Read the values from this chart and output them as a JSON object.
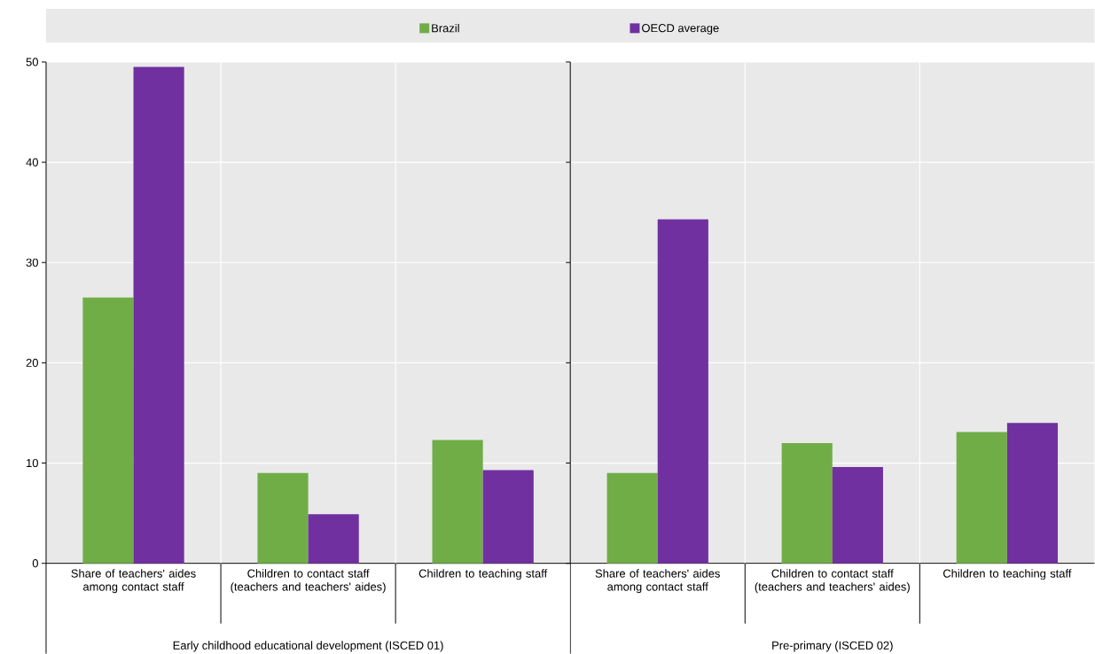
{
  "chart_data": [
    {
      "type": "bar",
      "categories": [
        "Share of teachers' aides among contact staff",
        "Children to contact staff (teachers and teachers' aides)",
        "Children to teaching staff"
      ],
      "series": [
        {
          "name": "Brazil",
          "color": "#70ad47",
          "values": [
            26.5,
            9.0,
            12.3
          ]
        },
        {
          "name": "OECD average",
          "color": "#7030a0",
          "values": [
            49.5,
            4.9,
            9.3
          ]
        }
      ],
      "ylim": [
        0,
        50
      ],
      "yticks": [
        0,
        10,
        20,
        30,
        40,
        50
      ],
      "grid": true,
      "legend": "top",
      "xlabel": "Early childhood educational development (ISCED 01)"
    },
    {
      "type": "bar",
      "categories": [
        "Share of teachers' aides among contact staff",
        "Children to contact staff (teachers and teachers' aides)",
        "Children to teaching staff"
      ],
      "series": [
        {
          "color": "#70ad47",
          "values": [
            9.0,
            12.0,
            13.1
          ]
        },
        {
          "color": "#7030a0",
          "values": [
            34.3,
            9.6,
            14.0
          ]
        }
      ],
      "ylim": [
        0,
        50
      ],
      "yticks": [
        0,
        10,
        20,
        30,
        40,
        50
      ],
      "grid": true,
      "tick_labels": "x",
      "xlabel": "Pre-primary (ISCED 02)"
    }
  ]
}
